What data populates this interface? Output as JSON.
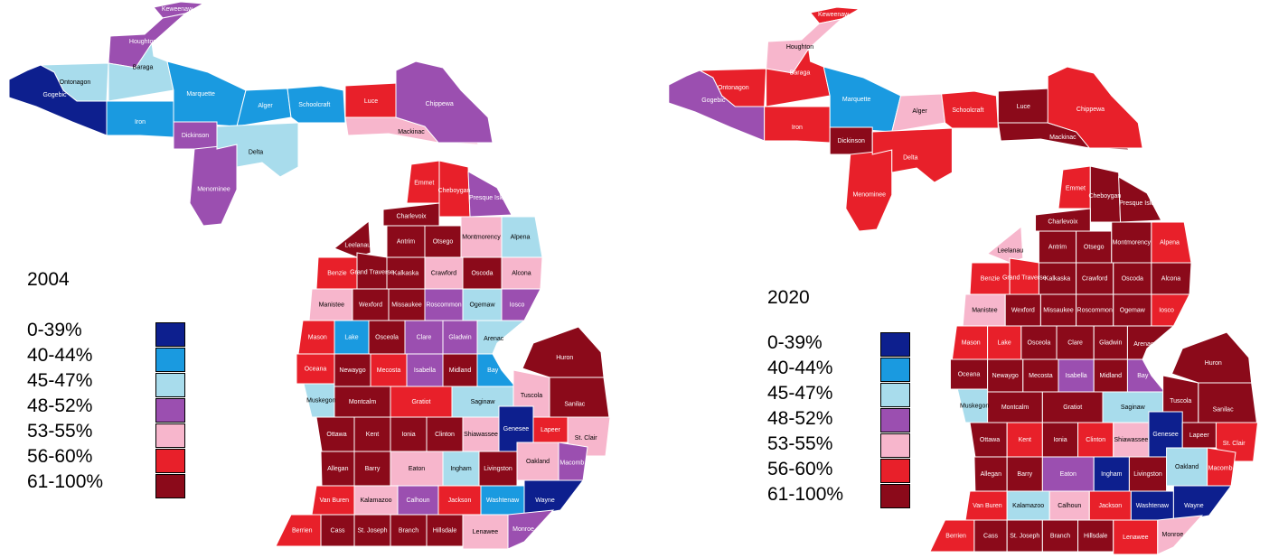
{
  "maps": [
    {
      "year": "2004",
      "legend": [
        {
          "label": "0-39%",
          "color": "#0d1f8e"
        },
        {
          "label": "40-44%",
          "color": "#1a9ae0"
        },
        {
          "label": "45-47%",
          "color": "#a8dcec"
        },
        {
          "label": "48-52%",
          "color": "#9b4fb0"
        },
        {
          "label": "53-55%",
          "color": "#f7b6cc"
        },
        {
          "label": "56-60%",
          "color": "#e8202a"
        },
        {
          "label": "61-100%",
          "color": "#8b0a1a"
        }
      ],
      "counties": [
        {
          "name": "Keweenaw",
          "bin": 3
        },
        {
          "name": "Houghton",
          "bin": 3
        },
        {
          "name": "Ontonagon",
          "bin": 2
        },
        {
          "name": "Gogebic",
          "bin": 0
        },
        {
          "name": "Baraga",
          "bin": 2
        },
        {
          "name": "Iron",
          "bin": 1
        },
        {
          "name": "Marquette",
          "bin": 1
        },
        {
          "name": "Dickinson",
          "bin": 3
        },
        {
          "name": "Menominee",
          "bin": 3
        },
        {
          "name": "Alger",
          "bin": 1
        },
        {
          "name": "Delta",
          "bin": 2
        },
        {
          "name": "Schoolcraft",
          "bin": 1
        },
        {
          "name": "Luce",
          "bin": 5
        },
        {
          "name": "Mackinac",
          "bin": 4
        },
        {
          "name": "Chippewa",
          "bin": 3
        },
        {
          "name": "Emmet",
          "bin": 5
        },
        {
          "name": "Cheboygan",
          "bin": 5
        },
        {
          "name": "Presque Isle",
          "bin": 3
        },
        {
          "name": "Charlevoix",
          "bin": 6
        },
        {
          "name": "Antrim",
          "bin": 6
        },
        {
          "name": "Otsego",
          "bin": 6
        },
        {
          "name": "Montmorency",
          "bin": 4
        },
        {
          "name": "Alpena",
          "bin": 2
        },
        {
          "name": "Leelanau",
          "bin": 6
        },
        {
          "name": "Benzie",
          "bin": 5
        },
        {
          "name": "Grand Traverse",
          "bin": 6
        },
        {
          "name": "Kalkaska",
          "bin": 6
        },
        {
          "name": "Crawford",
          "bin": 4
        },
        {
          "name": "Oscoda",
          "bin": 6
        },
        {
          "name": "Alcona",
          "bin": 4
        },
        {
          "name": "Manistee",
          "bin": 4
        },
        {
          "name": "Wexford",
          "bin": 6
        },
        {
          "name": "Missaukee",
          "bin": 6
        },
        {
          "name": "Roscommon",
          "bin": 3
        },
        {
          "name": "Ogemaw",
          "bin": 2
        },
        {
          "name": "Iosco",
          "bin": 3
        },
        {
          "name": "Mason",
          "bin": 5
        },
        {
          "name": "Lake",
          "bin": 1
        },
        {
          "name": "Osceola",
          "bin": 6
        },
        {
          "name": "Clare",
          "bin": 3
        },
        {
          "name": "Gladwin",
          "bin": 3
        },
        {
          "name": "Arenac",
          "bin": 2
        },
        {
          "name": "Oceana",
          "bin": 5
        },
        {
          "name": "Newaygo",
          "bin": 6
        },
        {
          "name": "Mecosta",
          "bin": 5
        },
        {
          "name": "Isabella",
          "bin": 3
        },
        {
          "name": "Midland",
          "bin": 6
        },
        {
          "name": "Bay",
          "bin": 1
        },
        {
          "name": "Huron",
          "bin": 6
        },
        {
          "name": "Muskegon",
          "bin": 2
        },
        {
          "name": "Montcalm",
          "bin": 6
        },
        {
          "name": "Gratiot",
          "bin": 5
        },
        {
          "name": "Saginaw",
          "bin": 2
        },
        {
          "name": "Tuscola",
          "bin": 4
        },
        {
          "name": "Sanilac",
          "bin": 6
        },
        {
          "name": "Ottawa",
          "bin": 6
        },
        {
          "name": "Kent",
          "bin": 6
        },
        {
          "name": "Ionia",
          "bin": 6
        },
        {
          "name": "Clinton",
          "bin": 6
        },
        {
          "name": "Shiawassee",
          "bin": 4
        },
        {
          "name": "Genesee",
          "bin": 0
        },
        {
          "name": "Lapeer",
          "bin": 5
        },
        {
          "name": "St. Clair",
          "bin": 4
        },
        {
          "name": "Allegan",
          "bin": 6
        },
        {
          "name": "Barry",
          "bin": 6
        },
        {
          "name": "Eaton",
          "bin": 4
        },
        {
          "name": "Ingham",
          "bin": 2
        },
        {
          "name": "Livingston",
          "bin": 6
        },
        {
          "name": "Oakland",
          "bin": 4
        },
        {
          "name": "Macomb",
          "bin": 3
        },
        {
          "name": "Van Buren",
          "bin": 5
        },
        {
          "name": "Kalamazoo",
          "bin": 4
        },
        {
          "name": "Calhoun",
          "bin": 3
        },
        {
          "name": "Jackson",
          "bin": 5
        },
        {
          "name": "Washtenaw",
          "bin": 1
        },
        {
          "name": "Wayne",
          "bin": 0
        },
        {
          "name": "Berrien",
          "bin": 5
        },
        {
          "name": "Cass",
          "bin": 6
        },
        {
          "name": "St. Joseph",
          "bin": 6
        },
        {
          "name": "Branch",
          "bin": 6
        },
        {
          "name": "Hillsdale",
          "bin": 6
        },
        {
          "name": "Lenawee",
          "bin": 4
        },
        {
          "name": "Monroe",
          "bin": 3
        }
      ]
    },
    {
      "year": "2020",
      "legend": [
        {
          "label": "0-39%",
          "color": "#0d1f8e"
        },
        {
          "label": "40-44%",
          "color": "#1a9ae0"
        },
        {
          "label": "45-47%",
          "color": "#a8dcec"
        },
        {
          "label": "48-52%",
          "color": "#9b4fb0"
        },
        {
          "label": "53-55%",
          "color": "#f7b6cc"
        },
        {
          "label": "56-60%",
          "color": "#e8202a"
        },
        {
          "label": "61-100%",
          "color": "#8b0a1a"
        }
      ],
      "counties": [
        {
          "name": "Keweenaw",
          "bin": 5
        },
        {
          "name": "Houghton",
          "bin": 4
        },
        {
          "name": "Ontonagon",
          "bin": 5
        },
        {
          "name": "Gogebic",
          "bin": 3
        },
        {
          "name": "Baraga",
          "bin": 5
        },
        {
          "name": "Iron",
          "bin": 5
        },
        {
          "name": "Marquette",
          "bin": 1
        },
        {
          "name": "Dickinson",
          "bin": 6
        },
        {
          "name": "Menominee",
          "bin": 5
        },
        {
          "name": "Alger",
          "bin": 4
        },
        {
          "name": "Delta",
          "bin": 5
        },
        {
          "name": "Schoolcraft",
          "bin": 5
        },
        {
          "name": "Luce",
          "bin": 6
        },
        {
          "name": "Mackinac",
          "bin": 6
        },
        {
          "name": "Chippewa",
          "bin": 5
        },
        {
          "name": "Emmet",
          "bin": 5
        },
        {
          "name": "Cheboygan",
          "bin": 6
        },
        {
          "name": "Presque Isle",
          "bin": 6
        },
        {
          "name": "Charlevoix",
          "bin": 6
        },
        {
          "name": "Antrim",
          "bin": 6
        },
        {
          "name": "Otsego",
          "bin": 6
        },
        {
          "name": "Montmorency",
          "bin": 6
        },
        {
          "name": "Alpena",
          "bin": 5
        },
        {
          "name": "Leelanau",
          "bin": 4
        },
        {
          "name": "Benzie",
          "bin": 5
        },
        {
          "name": "Grand Traverse",
          "bin": 5
        },
        {
          "name": "Kalkaska",
          "bin": 6
        },
        {
          "name": "Crawford",
          "bin": 6
        },
        {
          "name": "Oscoda",
          "bin": 6
        },
        {
          "name": "Alcona",
          "bin": 6
        },
        {
          "name": "Manistee",
          "bin": 4
        },
        {
          "name": "Wexford",
          "bin": 6
        },
        {
          "name": "Missaukee",
          "bin": 6
        },
        {
          "name": "Roscommon",
          "bin": 6
        },
        {
          "name": "Ogemaw",
          "bin": 6
        },
        {
          "name": "Iosco",
          "bin": 5
        },
        {
          "name": "Mason",
          "bin": 5
        },
        {
          "name": "Lake",
          "bin": 5
        },
        {
          "name": "Osceola",
          "bin": 6
        },
        {
          "name": "Clare",
          "bin": 6
        },
        {
          "name": "Gladwin",
          "bin": 6
        },
        {
          "name": "Arenac",
          "bin": 6
        },
        {
          "name": "Oceana",
          "bin": 6
        },
        {
          "name": "Newaygo",
          "bin": 6
        },
        {
          "name": "Mecosta",
          "bin": 6
        },
        {
          "name": "Isabella",
          "bin": 3
        },
        {
          "name": "Midland",
          "bin": 6
        },
        {
          "name": "Bay",
          "bin": 3
        },
        {
          "name": "Huron",
          "bin": 6
        },
        {
          "name": "Muskegon",
          "bin": 2
        },
        {
          "name": "Montcalm",
          "bin": 6
        },
        {
          "name": "Gratiot",
          "bin": 6
        },
        {
          "name": "Saginaw",
          "bin": 2
        },
        {
          "name": "Tuscola",
          "bin": 6
        },
        {
          "name": "Sanilac",
          "bin": 6
        },
        {
          "name": "Ottawa",
          "bin": 6
        },
        {
          "name": "Kent",
          "bin": 5
        },
        {
          "name": "Ionia",
          "bin": 6
        },
        {
          "name": "Clinton",
          "bin": 5
        },
        {
          "name": "Shiawassee",
          "bin": 4
        },
        {
          "name": "Genesee",
          "bin": 0
        },
        {
          "name": "Lapeer",
          "bin": 6
        },
        {
          "name": "St. Clair",
          "bin": 5
        },
        {
          "name": "Allegan",
          "bin": 6
        },
        {
          "name": "Barry",
          "bin": 6
        },
        {
          "name": "Eaton",
          "bin": 3
        },
        {
          "name": "Ingham",
          "bin": 0
        },
        {
          "name": "Livingston",
          "bin": 6
        },
        {
          "name": "Oakland",
          "bin": 2
        },
        {
          "name": "Macomb",
          "bin": 5
        },
        {
          "name": "Van Buren",
          "bin": 5
        },
        {
          "name": "Kalamazoo",
          "bin": 2
        },
        {
          "name": "Calhoun",
          "bin": 4
        },
        {
          "name": "Jackson",
          "bin": 5
        },
        {
          "name": "Washtenaw",
          "bin": 0
        },
        {
          "name": "Wayne",
          "bin": 0
        },
        {
          "name": "Berrien",
          "bin": 5
        },
        {
          "name": "Cass",
          "bin": 6
        },
        {
          "name": "St. Joseph",
          "bin": 6
        },
        {
          "name": "Branch",
          "bin": 6
        },
        {
          "name": "Hillsdale",
          "bin": 6
        },
        {
          "name": "Lenawee",
          "bin": 5
        },
        {
          "name": "Monroe",
          "bin": 4
        }
      ]
    }
  ]
}
